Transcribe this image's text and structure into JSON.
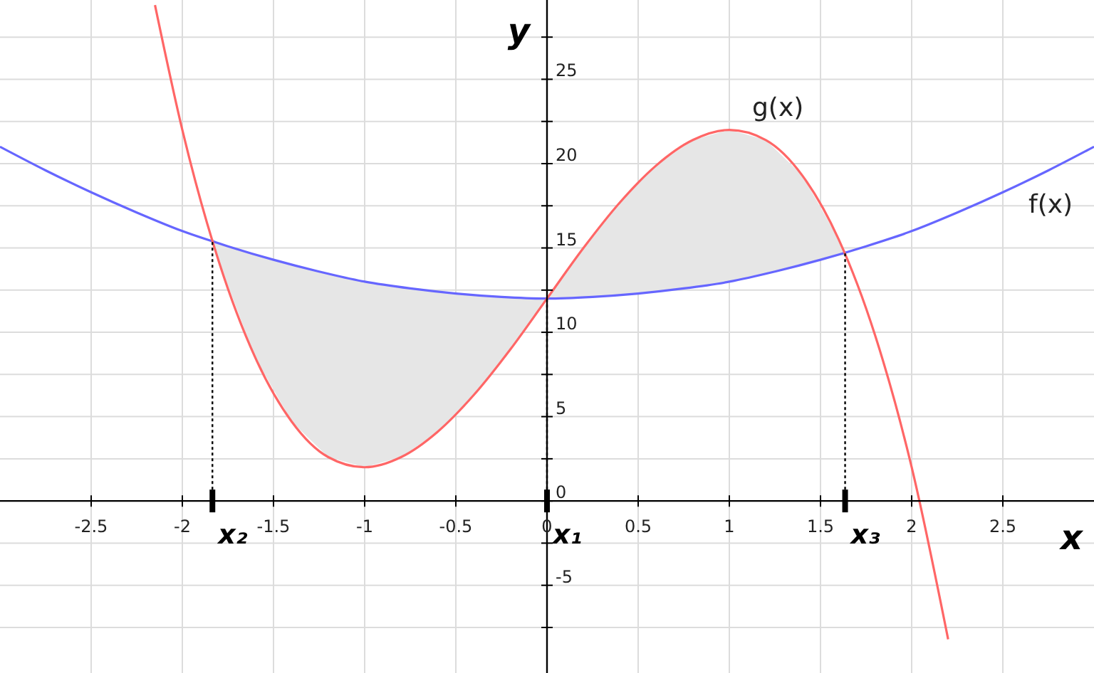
{
  "chart_data": {
    "type": "line",
    "xlabel": "x",
    "ylabel": "y",
    "xlim": [
      -3,
      3
    ],
    "ylim": [
      -10.2,
      29.7
    ],
    "xticks": [
      -2.5,
      -2,
      -1.5,
      -1,
      -0.5,
      0,
      0.5,
      1,
      1.5,
      2,
      2.5
    ],
    "yticks": [
      {
        "value": -7.5,
        "label": null
      },
      -5,
      {
        "value": -2.5,
        "label": null
      },
      0,
      {
        "value": 2.5,
        "label": null
      },
      5,
      {
        "value": 7.5,
        "label": null
      },
      10,
      {
        "value": 12.5,
        "label": null
      },
      15,
      {
        "value": 17.5,
        "label": null
      },
      20,
      {
        "value": 22.5,
        "label": null
      },
      25,
      {
        "value": 27.5,
        "label": null
      }
    ],
    "grid": true,
    "marker": "none",
    "line_style": "solid",
    "series": [
      {
        "name": "f(x)",
        "color": "#6666ff",
        "x": [
          -3,
          -2.75,
          -2.5,
          -2.25,
          -2,
          -1.75,
          -1.5,
          -1.25,
          -1,
          -0.75,
          -0.5,
          -0.25,
          0,
          0.25,
          0.5,
          0.75,
          1,
          1.25,
          1.5,
          1.75,
          2,
          2.25,
          2.5,
          2.75,
          3
        ],
        "values": [
          21,
          19.6,
          18.3,
          17.1,
          16,
          15.1,
          14.3,
          13.6,
          13,
          12.6,
          12.3,
          12.1,
          12,
          12.1,
          12.3,
          12.6,
          13,
          13.6,
          14.3,
          15.1,
          16,
          17.1,
          18.3,
          19.6,
          21
        ]
      },
      {
        "name": "g(x)",
        "color": "#ff6666",
        "x": [
          -2.15,
          -2,
          -1.8,
          -1.6,
          -1.4,
          -1.2,
          -1,
          -0.8,
          -0.6,
          -0.4,
          -0.2,
          0,
          0.2,
          0.4,
          0.6,
          0.8,
          1,
          1.2,
          1.4,
          1.6,
          1.8,
          2,
          2.2
        ],
        "values": [
          29.4,
          22,
          14.2,
          8.5,
          4.7,
          2.6,
          2,
          2.6,
          4.1,
          6.3,
          9,
          12,
          15,
          17.7,
          19.9,
          21.4,
          22,
          21.4,
          19.3,
          15.5,
          9.8,
          2,
          -8.2
        ]
      }
    ],
    "annotations": [
      {
        "text": "x₂",
        "x": -1.835,
        "y": 15.4
      },
      {
        "text": "x₁",
        "x": 0,
        "y": 12
      },
      {
        "text": "x₃",
        "x": 1.635,
        "y": 14.7
      }
    ]
  }
}
